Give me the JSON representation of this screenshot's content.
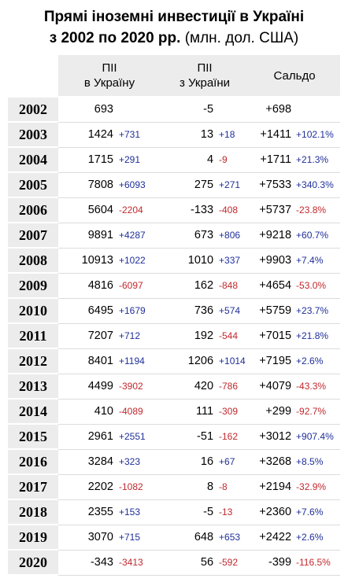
{
  "title": {
    "line1": "Прямі іноземні инвестиції в Україні",
    "line2_bold": "з 2002 по 2020 рр.",
    "line2_unit": " (млн. дол. США)"
  },
  "colors": {
    "positive": "#1f2f9a",
    "negative": "#c0282d",
    "header_bg": "#ececec"
  },
  "chart_data": {
    "type": "table",
    "columns": [
      {
        "line1": "ПІІ",
        "line2": "в Україну"
      },
      {
        "line1": "ПІІ",
        "line2": "з України"
      },
      {
        "line1": "Сальдо",
        "line2": ""
      }
    ],
    "rows": [
      {
        "year": "2002",
        "fdi_in": "693",
        "fdi_in_chg": "",
        "fdi_out": "-5",
        "fdi_out_chg": "",
        "saldo": "+698",
        "saldo_pct": ""
      },
      {
        "year": "2003",
        "fdi_in": "1424",
        "fdi_in_chg": "+731",
        "fdi_out": "13",
        "fdi_out_chg": "+18",
        "saldo": "+1411",
        "saldo_pct": "+102.1%"
      },
      {
        "year": "2004",
        "fdi_in": "1715",
        "fdi_in_chg": "+291",
        "fdi_out": "4",
        "fdi_out_chg": "-9",
        "saldo": "+1711",
        "saldo_pct": "+21.3%"
      },
      {
        "year": "2005",
        "fdi_in": "7808",
        "fdi_in_chg": "+6093",
        "fdi_out": "275",
        "fdi_out_chg": "+271",
        "saldo": "+7533",
        "saldo_pct": "+340.3%"
      },
      {
        "year": "2006",
        "fdi_in": "5604",
        "fdi_in_chg": "-2204",
        "fdi_out": "-133",
        "fdi_out_chg": "-408",
        "saldo": "+5737",
        "saldo_pct": "-23.8%"
      },
      {
        "year": "2007",
        "fdi_in": "9891",
        "fdi_in_chg": "+4287",
        "fdi_out": "673",
        "fdi_out_chg": "+806",
        "saldo": "+9218",
        "saldo_pct": "+60.7%"
      },
      {
        "year": "2008",
        "fdi_in": "10913",
        "fdi_in_chg": "+1022",
        "fdi_out": "1010",
        "fdi_out_chg": "+337",
        "saldo": "+9903",
        "saldo_pct": "+7.4%"
      },
      {
        "year": "2009",
        "fdi_in": "4816",
        "fdi_in_chg": "-6097",
        "fdi_out": "162",
        "fdi_out_chg": "-848",
        "saldo": "+4654",
        "saldo_pct": "-53.0%"
      },
      {
        "year": "2010",
        "fdi_in": "6495",
        "fdi_in_chg": "+1679",
        "fdi_out": "736",
        "fdi_out_chg": "+574",
        "saldo": "+5759",
        "saldo_pct": "+23.7%"
      },
      {
        "year": "2011",
        "fdi_in": "7207",
        "fdi_in_chg": "+712",
        "fdi_out": "192",
        "fdi_out_chg": "-544",
        "saldo": "+7015",
        "saldo_pct": "+21.8%"
      },
      {
        "year": "2012",
        "fdi_in": "8401",
        "fdi_in_chg": "+1194",
        "fdi_out": "1206",
        "fdi_out_chg": "+1014",
        "saldo": "+7195",
        "saldo_pct": "+2.6%"
      },
      {
        "year": "2013",
        "fdi_in": "4499",
        "fdi_in_chg": "-3902",
        "fdi_out": "420",
        "fdi_out_chg": "-786",
        "saldo": "+4079",
        "saldo_pct": "-43.3%"
      },
      {
        "year": "2014",
        "fdi_in": "410",
        "fdi_in_chg": "-4089",
        "fdi_out": "111",
        "fdi_out_chg": "-309",
        "saldo": "+299",
        "saldo_pct": "-92.7%"
      },
      {
        "year": "2015",
        "fdi_in": "2961",
        "fdi_in_chg": "+2551",
        "fdi_out": "-51",
        "fdi_out_chg": "-162",
        "saldo": "+3012",
        "saldo_pct": "+907.4%"
      },
      {
        "year": "2016",
        "fdi_in": "3284",
        "fdi_in_chg": "+323",
        "fdi_out": "16",
        "fdi_out_chg": "+67",
        "saldo": "+3268",
        "saldo_pct": "+8.5%"
      },
      {
        "year": "2017",
        "fdi_in": "2202",
        "fdi_in_chg": "-1082",
        "fdi_out": "8",
        "fdi_out_chg": "-8",
        "saldo": "+2194",
        "saldo_pct": "-32.9%"
      },
      {
        "year": "2018",
        "fdi_in": "2355",
        "fdi_in_chg": "+153",
        "fdi_out": "-5",
        "fdi_out_chg": "-13",
        "saldo": "+2360",
        "saldo_pct": "+7.6%"
      },
      {
        "year": "2019",
        "fdi_in": "3070",
        "fdi_in_chg": "+715",
        "fdi_out": "648",
        "fdi_out_chg": "+653",
        "saldo": "+2422",
        "saldo_pct": "+2.6%"
      },
      {
        "year": "2020",
        "fdi_in": "-343",
        "fdi_in_chg": "-3413",
        "fdi_out": "56",
        "fdi_out_chg": "-592",
        "saldo": "-399",
        "saldo_pct": "-116.5%"
      }
    ]
  }
}
